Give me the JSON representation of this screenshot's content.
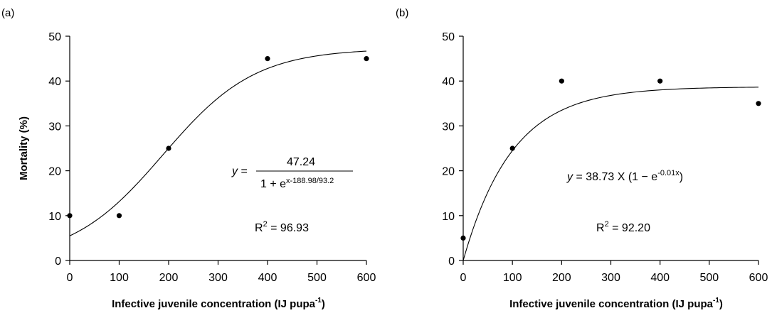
{
  "chart_data": [
    {
      "type": "scatter",
      "panel_label": "(a)",
      "xlabel": "Infective juvenile concentration (IJ pupa",
      "xlabel_sup": "-1",
      "xlabel_end": ")",
      "ylabel": "Mortality (%)",
      "xlim": [
        0,
        600
      ],
      "ylim": [
        0,
        50
      ],
      "x_ticks": [
        "0",
        "100",
        "200",
        "300",
        "400",
        "500",
        "600"
      ],
      "y_ticks": [
        "0",
        "10",
        "20",
        "30",
        "40",
        "50"
      ],
      "points": [
        {
          "x": 0,
          "y": 10
        },
        {
          "x": 100,
          "y": 10
        },
        {
          "x": 200,
          "y": 25
        },
        {
          "x": 400,
          "y": 45
        },
        {
          "x": 600,
          "y": 45
        }
      ],
      "fit": {
        "model": "logistic",
        "a": 47.24,
        "b": 188.98,
        "c": 93.2
      },
      "equation": {
        "y_var": "y",
        "equals": " = ",
        "numerator": "47.24",
        "denominator_base": "1 + e",
        "denominator_exp": "x-188.98/93.2"
      },
      "r2": {
        "label": "R",
        "sup": "2",
        "value": " = 96.93"
      }
    },
    {
      "type": "scatter",
      "panel_label": "(b)",
      "xlabel": "Infective juvenile concentration (IJ pupa",
      "xlabel_sup": "-1",
      "xlabel_end": ")",
      "ylabel": "",
      "xlim": [
        0,
        600
      ],
      "ylim": [
        0,
        50
      ],
      "x_ticks": [
        "0",
        "100",
        "200",
        "300",
        "400",
        "500",
        "600"
      ],
      "y_ticks": [
        "0",
        "10",
        "20",
        "30",
        "40",
        "50"
      ],
      "points": [
        {
          "x": 0,
          "y": 5
        },
        {
          "x": 100,
          "y": 25
        },
        {
          "x": 200,
          "y": 40
        },
        {
          "x": 400,
          "y": 40
        },
        {
          "x": 600,
          "y": 35
        }
      ],
      "fit": {
        "model": "exponential-rise",
        "a": 38.73,
        "k": 0.01
      },
      "equation": {
        "y_var": "y",
        "body": " = 38.73 X (1 − e",
        "exp": "-0.01x",
        "close": ")"
      },
      "r2": {
        "label": "R",
        "sup": "2",
        "value": " = 92.20"
      }
    }
  ]
}
